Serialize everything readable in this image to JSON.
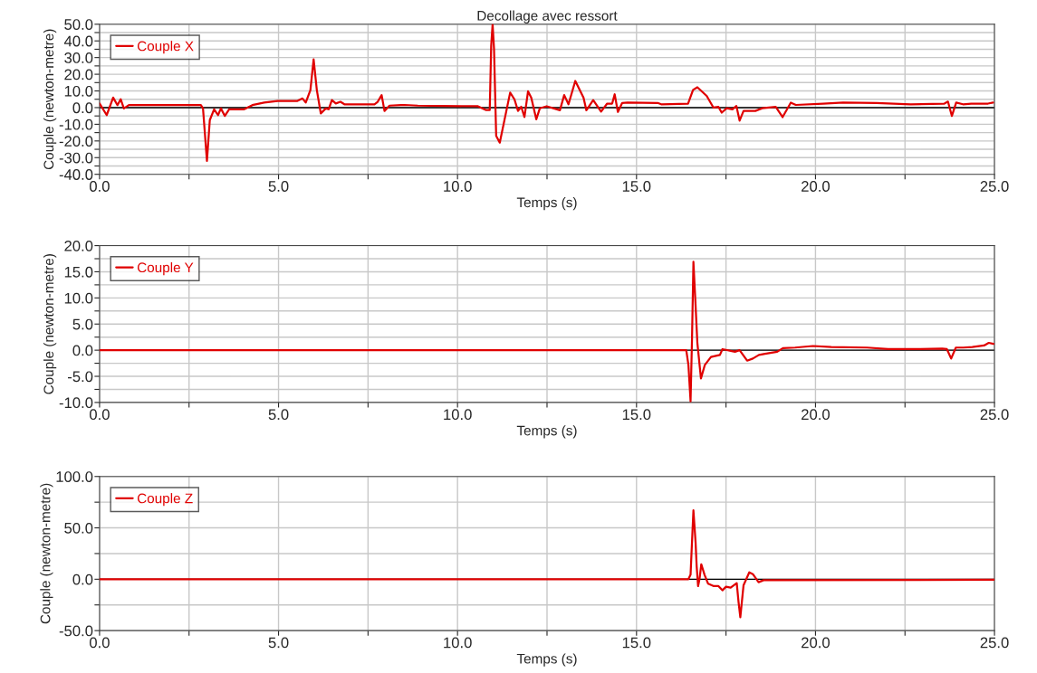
{
  "chart_data": [
    {
      "type": "line",
      "title": "Decollage avec ressort",
      "xlabel": "Temps (s)",
      "ylabel": "Couple (newton-metre)",
      "xlim": [
        0,
        25
      ],
      "ylim": [
        -40,
        50
      ],
      "xticks": [
        {
          "value": 0,
          "label": "0.0"
        },
        {
          "value": 2.5,
          "label": null
        },
        {
          "value": 5,
          "label": "5.0"
        },
        {
          "value": 7.5,
          "label": null
        },
        {
          "value": 10,
          "label": "10.0"
        },
        {
          "value": 12.5,
          "label": null
        },
        {
          "value": 15,
          "label": "15.0"
        },
        {
          "value": 17.5,
          "label": null
        },
        {
          "value": 20,
          "label": "20.0"
        },
        {
          "value": 22.5,
          "label": null
        },
        {
          "value": 25,
          "label": "25.0"
        }
      ],
      "yticks": [
        {
          "value": -40,
          "label": "-40.0"
        },
        {
          "value": -35,
          "label": null
        },
        {
          "value": -30,
          "label": "-30.0"
        },
        {
          "value": -25,
          "label": null
        },
        {
          "value": -20,
          "label": "-20.0"
        },
        {
          "value": -15,
          "label": null
        },
        {
          "value": -10,
          "label": "-10.0"
        },
        {
          "value": -5,
          "label": null
        },
        {
          "value": 0,
          "label": "0.0"
        },
        {
          "value": 5,
          "label": null
        },
        {
          "value": 10,
          "label": "10.0"
        },
        {
          "value": 15,
          "label": null
        },
        {
          "value": 20,
          "label": "20.0"
        },
        {
          "value": 25,
          "label": null
        },
        {
          "value": 30,
          "label": "30.0"
        },
        {
          "value": 35,
          "label": null
        },
        {
          "value": 40,
          "label": "40.0"
        },
        {
          "value": 45,
          "label": null
        },
        {
          "value": 50,
          "label": "50.0"
        }
      ],
      "grid": true,
      "legend": "top left",
      "ref_lines": [
        {
          "axis": "y",
          "value": 0,
          "color": "#000000"
        }
      ],
      "series": [
        {
          "name": "Couple X",
          "color": "#e00000",
          "x": [
            0,
            0.2,
            0.38,
            0.5,
            0.59,
            0.68,
            0.82,
            2.83,
            2.89,
            3.0,
            3.08,
            3.2,
            3.31,
            3.39,
            3.5,
            3.62,
            4.04,
            4.27,
            4.6,
            4.97,
            5.53,
            5.67,
            5.76,
            5.89,
            5.98,
            6.07,
            6.18,
            6.32,
            6.4,
            6.49,
            6.6,
            6.73,
            6.84,
            7.68,
            7.77,
            7.88,
            7.96,
            8.1,
            8.42,
            8.52,
            8.89,
            10.57,
            10.8,
            10.9,
            10.94,
            10.98,
            11.02,
            11.08,
            11.18,
            11.47,
            11.59,
            11.69,
            11.78,
            11.87,
            11.97,
            12.06,
            12.2,
            12.3,
            12.49,
            12.86,
            12.98,
            13.1,
            13.29,
            13.52,
            13.6,
            13.79,
            14.01,
            14.18,
            14.32,
            14.39,
            14.48,
            14.6,
            14.75,
            15.59,
            15.69,
            16.44,
            16.58,
            16.7,
            16.96,
            17.15,
            17.29,
            17.38,
            17.52,
            17.68,
            17.79,
            17.88,
            17.99,
            18.32,
            18.51,
            18.89,
            19.08,
            19.31,
            19.45,
            20.21,
            20.77,
            21.71,
            22.66,
            23.6,
            23.7,
            23.81,
            23.93,
            24.12,
            24.35,
            24.82,
            24.96
          ],
          "values": [
            2.5,
            -4.5,
            6,
            1.5,
            5,
            -0.5,
            1.5,
            1.5,
            -0.5,
            -32,
            -7.5,
            -1,
            -4.5,
            -0.5,
            -5,
            -1,
            -1,
            1.5,
            3,
            4,
            4,
            5.5,
            3,
            10.5,
            29,
            10.5,
            -3.5,
            -0.5,
            -1,
            4.5,
            2.5,
            3.5,
            2,
            2,
            3.5,
            7.5,
            -2,
            1.2,
            1.5,
            1.6,
            1.2,
            0.8,
            -1.5,
            -1.5,
            37,
            50,
            35,
            -17,
            -21,
            9,
            5,
            -2,
            0.5,
            -5.7,
            9.8,
            6,
            -7,
            -0.4,
            0.8,
            -1.6,
            7.5,
            2,
            16,
            6,
            -1.6,
            4.5,
            -2.4,
            2.4,
            2.4,
            8,
            -2.6,
            2.8,
            3,
            2.8,
            2,
            2.4,
            10.6,
            12.2,
            7,
            0,
            0.4,
            -3,
            -0.4,
            -1,
            1,
            -7.8,
            -2,
            -2,
            -0.4,
            0.4,
            -5.7,
            3,
            1.6,
            2.4,
            3,
            2.8,
            2,
            2.4,
            3.6,
            -5,
            3,
            2,
            2.4,
            2.4,
            3
          ]
        }
      ]
    },
    {
      "type": "line",
      "xlabel": "Temps (s)",
      "ylabel": "Couple (newton-metre)",
      "xlim": [
        0,
        25
      ],
      "ylim": [
        -10,
        20
      ],
      "xticks": [
        {
          "value": 0,
          "label": "0.0"
        },
        {
          "value": 2.5,
          "label": null
        },
        {
          "value": 5,
          "label": "5.0"
        },
        {
          "value": 7.5,
          "label": null
        },
        {
          "value": 10,
          "label": "10.0"
        },
        {
          "value": 12.5,
          "label": null
        },
        {
          "value": 15,
          "label": "15.0"
        },
        {
          "value": 17.5,
          "label": null
        },
        {
          "value": 20,
          "label": "20.0"
        },
        {
          "value": 22.5,
          "label": null
        },
        {
          "value": 25,
          "label": "25.0"
        }
      ],
      "yticks": [
        {
          "value": -10,
          "label": "-10.0"
        },
        {
          "value": -7.5,
          "label": null
        },
        {
          "value": -5,
          "label": "-5.0"
        },
        {
          "value": -2.5,
          "label": null
        },
        {
          "value": 0,
          "label": "0.0"
        },
        {
          "value": 2.5,
          "label": null
        },
        {
          "value": 5,
          "label": "5.0"
        },
        {
          "value": 7.5,
          "label": null
        },
        {
          "value": 10,
          "label": "10.0"
        },
        {
          "value": 12.5,
          "label": null
        },
        {
          "value": 15,
          "label": "15.0"
        },
        {
          "value": 17.5,
          "label": null
        },
        {
          "value": 20,
          "label": "20.0"
        }
      ],
      "grid": true,
      "legend": "top left",
      "ref_lines": [
        {
          "axis": "y",
          "value": 0,
          "color": "#000000"
        }
      ],
      "series": [
        {
          "name": "Couple Y",
          "color": "#e00000",
          "x": [
            0,
            16.39,
            16.45,
            16.51,
            16.55,
            16.59,
            16.64,
            16.7,
            16.8,
            16.91,
            17.08,
            17.33,
            17.4,
            17.75,
            17.88,
            18.09,
            18.25,
            18.42,
            18.59,
            18.93,
            19.09,
            19.43,
            19.93,
            20.44,
            21.44,
            22.03,
            22.87,
            23.54,
            23.67,
            23.79,
            23.92,
            24.13,
            24.38,
            24.71,
            24.84,
            24.97
          ],
          "values": [
            0,
            0,
            -2.8,
            -9.8,
            2,
            16.9,
            10,
            1.4,
            -5.4,
            -2.8,
            -1.3,
            -0.9,
            0.2,
            -0.3,
            0,
            -2,
            -1.6,
            -0.9,
            -0.7,
            -0.3,
            0.4,
            0.5,
            0.8,
            0.6,
            0.5,
            0.2,
            0.2,
            0.3,
            0.2,
            -1.6,
            0.5,
            0.5,
            0.6,
            0.9,
            1.4,
            1.2
          ]
        }
      ]
    },
    {
      "type": "line",
      "xlabel": "Temps (s)",
      "ylabel": "Couple (newton-metre)",
      "xlim": [
        0,
        25
      ],
      "ylim": [
        -50,
        100
      ],
      "xticks": [
        {
          "value": 0,
          "label": "0.0"
        },
        {
          "value": 2.5,
          "label": null
        },
        {
          "value": 5,
          "label": "5.0"
        },
        {
          "value": 7.5,
          "label": null
        },
        {
          "value": 10,
          "label": "10.0"
        },
        {
          "value": 12.5,
          "label": null
        },
        {
          "value": 15,
          "label": "15.0"
        },
        {
          "value": 17.5,
          "label": null
        },
        {
          "value": 20,
          "label": "20.0"
        },
        {
          "value": 22.5,
          "label": null
        },
        {
          "value": 25,
          "label": "25.0"
        }
      ],
      "yticks": [
        {
          "value": -50,
          "label": "-50.0"
        },
        {
          "value": -25,
          "label": null
        },
        {
          "value": 0,
          "label": "0.0"
        },
        {
          "value": 25,
          "label": null
        },
        {
          "value": 50,
          "label": "50.0"
        },
        {
          "value": 75,
          "label": null
        },
        {
          "value": 100,
          "label": "100.0"
        }
      ],
      "grid": true,
      "legend": "top left",
      "ref_lines": [
        {
          "axis": "y",
          "value": 0,
          "color": "#000000"
        }
      ],
      "series": [
        {
          "name": "Couple Z",
          "color": "#e00000",
          "x": [
            0,
            16.45,
            16.51,
            16.55,
            16.59,
            16.65,
            16.68,
            16.72,
            16.76,
            16.81,
            16.9,
            17.0,
            17.16,
            17.29,
            17.4,
            17.5,
            17.63,
            17.8,
            17.85,
            17.9,
            17.99,
            18.15,
            18.25,
            18.41,
            18.55,
            25
          ],
          "values": [
            0,
            0,
            4.4,
            36,
            67,
            36,
            13,
            -6.7,
            0,
            14.6,
            4.4,
            -4.4,
            -6.7,
            -6.7,
            -10.8,
            -7.3,
            -8.2,
            -3.8,
            -22,
            -37,
            -5.8,
            6.7,
            5,
            -2.9,
            -0.9,
            -0.5
          ]
        }
      ]
    }
  ]
}
